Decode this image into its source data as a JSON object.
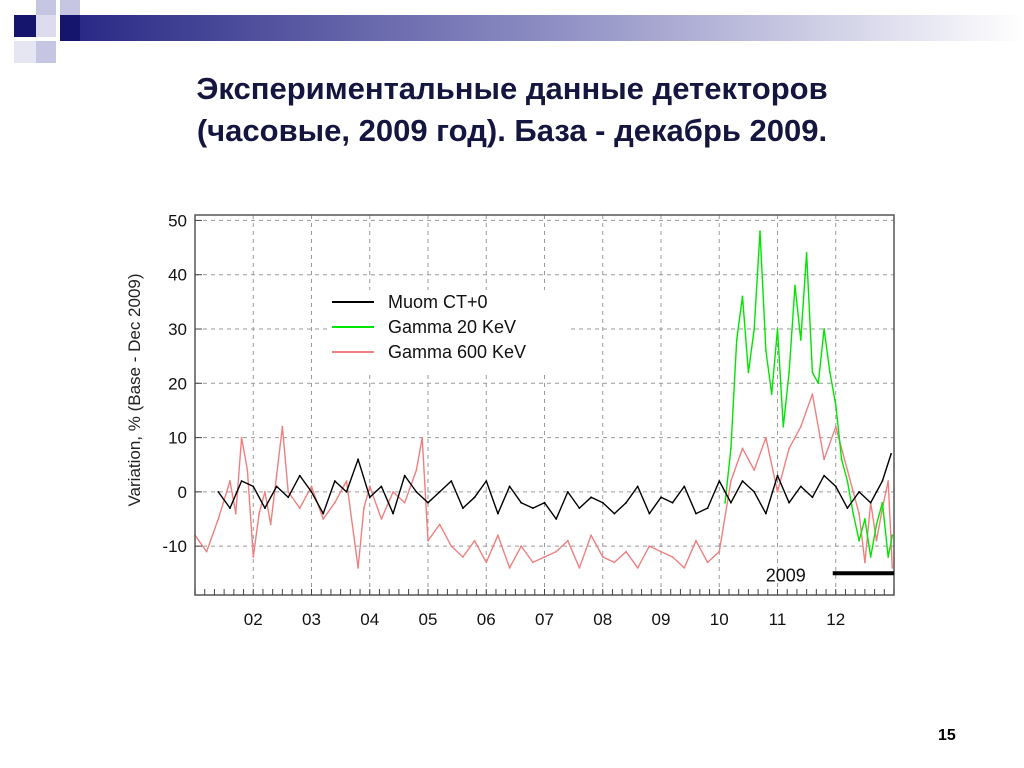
{
  "slide": {
    "title_line1": "Экспериментальные данные детекторов",
    "title_line2": "(часовые, 2009 год). База - декабрь 2009.",
    "number": "15"
  },
  "colors": {
    "title": "#14163f",
    "muon": "#000000",
    "gamma20": "#00e600",
    "gamma600": "#f08080",
    "grid": "#9a9a9a",
    "deco_dark": "#15156e",
    "deco_light": "#c6c6e2"
  },
  "chart_data": {
    "type": "line",
    "ylabel": "Variation, %   (Base - Dec 2009)",
    "xlabel": "",
    "ylim": [
      -19,
      51
    ],
    "x_range": [
      1,
      13
    ],
    "y_ticks": [
      -10,
      0,
      10,
      20,
      30,
      40,
      50
    ],
    "x_ticks": [
      {
        "pos": 2,
        "label": "02"
      },
      {
        "pos": 3,
        "label": "03"
      },
      {
        "pos": 4,
        "label": "04"
      },
      {
        "pos": 5,
        "label": "05"
      },
      {
        "pos": 6,
        "label": "06"
      },
      {
        "pos": 7,
        "label": "07"
      },
      {
        "pos": 8,
        "label": "08"
      },
      {
        "pos": 9,
        "label": "09"
      },
      {
        "pos": 10,
        "label": "10"
      },
      {
        "pos": 11,
        "label": "11"
      },
      {
        "pos": 12,
        "label": "12"
      }
    ],
    "grid": true,
    "legend_position": "upper-left",
    "annotation": {
      "text": "2009",
      "base_period": [
        12.0,
        13.0
      ],
      "base_level": -15
    },
    "series": [
      {
        "name": "Muom CT+0",
        "color": "#000000",
        "x": [
          1.4,
          1.6,
          1.8,
          2.0,
          2.2,
          2.4,
          2.6,
          2.8,
          3.0,
          3.2,
          3.4,
          3.6,
          3.8,
          4.0,
          4.2,
          4.4,
          4.6,
          4.8,
          5.0,
          5.2,
          5.4,
          5.6,
          5.8,
          6.0,
          6.2,
          6.4,
          6.6,
          6.8,
          7.0,
          7.2,
          7.4,
          7.6,
          7.8,
          8.0,
          8.2,
          8.4,
          8.6,
          8.8,
          9.0,
          9.2,
          9.4,
          9.6,
          9.8,
          10.0,
          10.2,
          10.4,
          10.6,
          10.8,
          11.0,
          11.2,
          11.4,
          11.6,
          11.8,
          12.0,
          12.2,
          12.4,
          12.6,
          12.8,
          12.95
        ],
        "y": [
          0,
          -3,
          2,
          1,
          -3,
          1,
          -1,
          3,
          0,
          -4,
          2,
          0,
          6,
          -1,
          1,
          -4,
          3,
          0,
          -2,
          0,
          2,
          -3,
          -1,
          2,
          -4,
          1,
          -2,
          -3,
          -2,
          -5,
          0,
          -3,
          -1,
          -2,
          -4,
          -2,
          1,
          -4,
          -1,
          -2,
          1,
          -4,
          -3,
          2,
          -2,
          2,
          0,
          -4,
          3,
          -2,
          1,
          -1,
          3,
          1,
          -3,
          0,
          -2,
          2,
          7
        ]
      },
      {
        "name": "Gamma 20   KeV",
        "color": "#00e600",
        "x": [
          10.1,
          10.2,
          10.3,
          10.4,
          10.5,
          10.6,
          10.7,
          10.8,
          10.9,
          11.0,
          11.1,
          11.2,
          11.3,
          11.4,
          11.5,
          11.6,
          11.7,
          11.8,
          11.9,
          12.0,
          12.1,
          12.2,
          12.3,
          12.4,
          12.5,
          12.6,
          12.7,
          12.8,
          12.9,
          12.97
        ],
        "y": [
          -2,
          8,
          28,
          36,
          22,
          30,
          48,
          26,
          18,
          30,
          12,
          22,
          38,
          28,
          44,
          22,
          20,
          30,
          22,
          16,
          6,
          2,
          -4,
          -9,
          -5,
          -12,
          -6,
          -2,
          -12,
          -8
        ]
      },
      {
        "name": "Gamma 600 KeV",
        "color": "#f08080",
        "x": [
          1.0,
          1.2,
          1.4,
          1.6,
          1.7,
          1.8,
          1.9,
          2.0,
          2.1,
          2.2,
          2.3,
          2.4,
          2.5,
          2.6,
          2.8,
          3.0,
          3.2,
          3.4,
          3.6,
          3.8,
          3.9,
          4.0,
          4.2,
          4.4,
          4.6,
          4.8,
          4.9,
          5.0,
          5.2,
          5.4,
          5.6,
          5.8,
          6.0,
          6.2,
          6.4,
          6.6,
          6.8,
          7.0,
          7.2,
          7.4,
          7.6,
          7.8,
          8.0,
          8.2,
          8.4,
          8.6,
          8.8,
          9.0,
          9.2,
          9.4,
          9.6,
          9.8,
          10.0,
          10.2,
          10.4,
          10.6,
          10.8,
          11.0,
          11.2,
          11.4,
          11.6,
          11.8,
          12.0,
          12.2,
          12.4,
          12.5,
          12.6,
          12.7,
          12.8,
          12.9,
          12.97
        ],
        "y": [
          -8,
          -11,
          -5,
          2,
          -4,
          10,
          4,
          -12,
          -4,
          0,
          -6,
          3,
          12,
          0,
          -3,
          1,
          -5,
          -2,
          2,
          -14,
          -3,
          1,
          -5,
          0,
          -2,
          4,
          10,
          -9,
          -6,
          -10,
          -12,
          -9,
          -13,
          -8,
          -14,
          -10,
          -13,
          -12,
          -11,
          -9,
          -14,
          -8,
          -12,
          -13,
          -11,
          -14,
          -10,
          -11,
          -12,
          -14,
          -9,
          -13,
          -11,
          2,
          8,
          4,
          10,
          0,
          8,
          12,
          18,
          6,
          12,
          4,
          -4,
          -13,
          -2,
          -9,
          -3,
          2,
          -14
        ]
      }
    ]
  }
}
